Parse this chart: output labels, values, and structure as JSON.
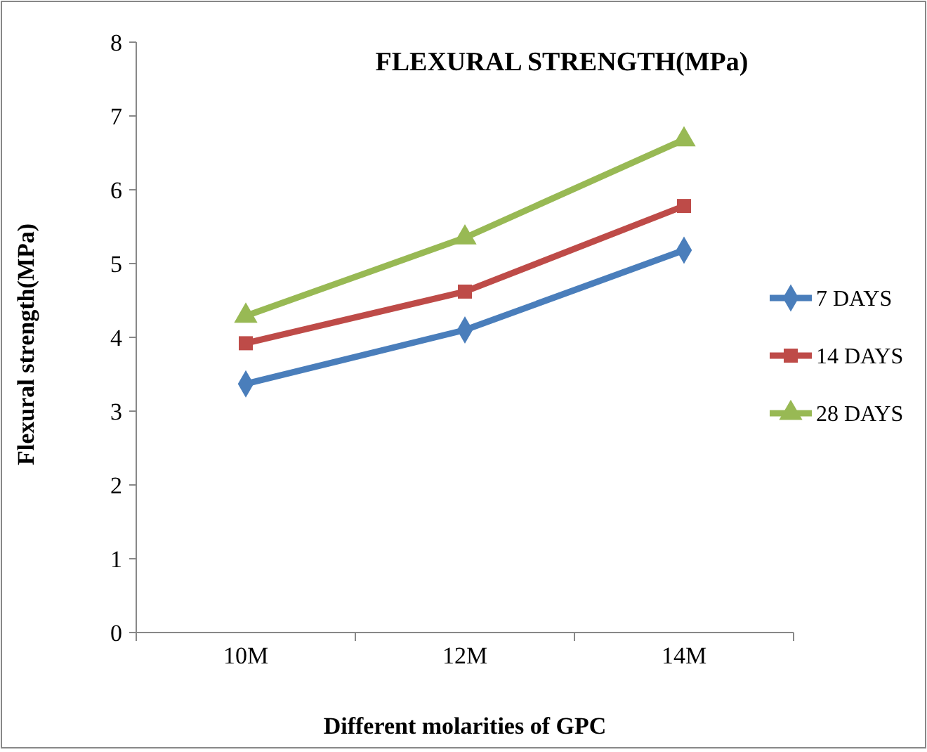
{
  "chart_data": {
    "type": "line",
    "title": "FLEXURAL STRENGTH(MPa)",
    "xlabel": "Different molarities of GPC",
    "ylabel": "Flexural strength(MPa)",
    "categories": [
      "10M",
      "12M",
      "14M"
    ],
    "ylim": [
      0,
      8
    ],
    "yticks": [
      0,
      1,
      2,
      3,
      4,
      5,
      6,
      7,
      8
    ],
    "legend": "right",
    "series": [
      {
        "name": "7 DAYS",
        "color": "#4a7ebb",
        "marker": "diamond",
        "values": [
          3.37,
          4.1,
          5.18
        ]
      },
      {
        "name": "14 DAYS",
        "color": "#be4b48",
        "marker": "square",
        "values": [
          3.92,
          4.62,
          5.78
        ]
      },
      {
        "name": "28 DAYS",
        "color": "#98b954",
        "marker": "triangle",
        "values": [
          4.29,
          5.35,
          6.68
        ]
      }
    ]
  }
}
